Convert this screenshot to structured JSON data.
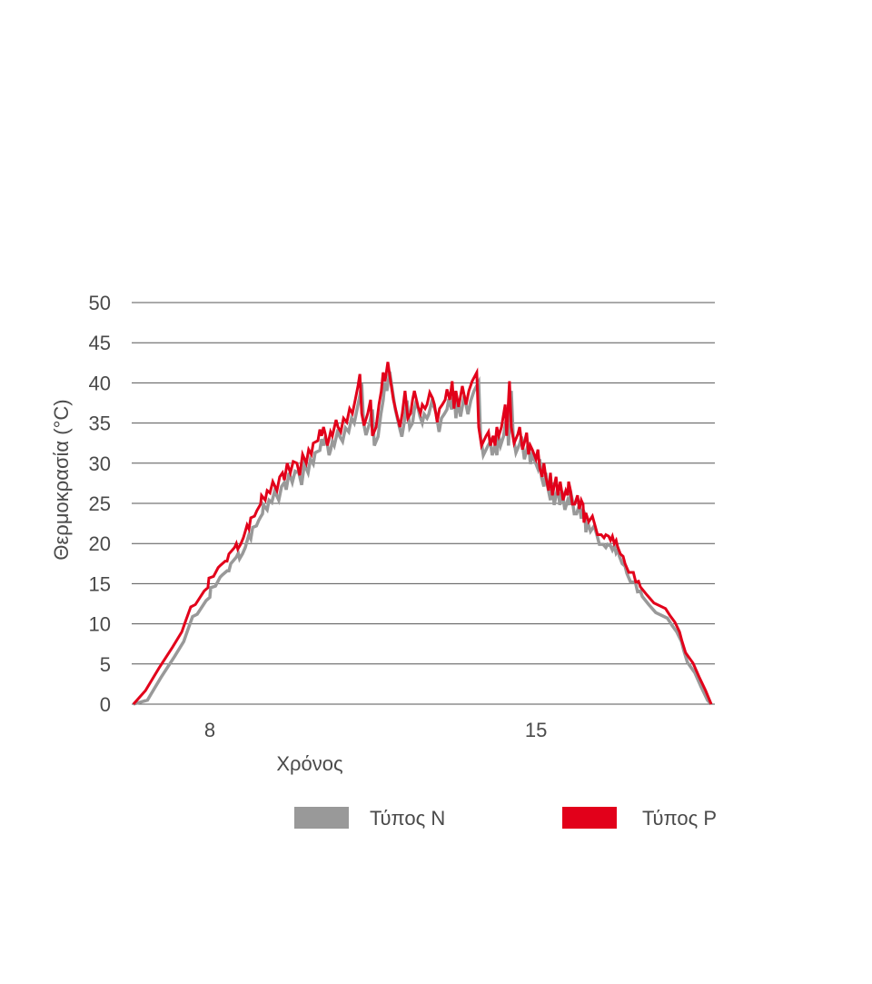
{
  "chart_data": {
    "type": "line",
    "title": "",
    "xlabel": "Χρόνος",
    "ylabel": "Θερμοκρασία (°C)",
    "xlim": [
      6.32,
      18.8
    ],
    "ylim": [
      0,
      50
    ],
    "x_ticks": [
      8,
      15
    ],
    "x_tick_labels": [
      "8",
      "15"
    ],
    "y_ticks": [
      0,
      5,
      10,
      15,
      20,
      25,
      30,
      35,
      40,
      45,
      50
    ],
    "y_tick_labels": [
      "0",
      "5",
      "10",
      "15",
      "20",
      "25",
      "30",
      "35",
      "40",
      "45",
      "50"
    ],
    "grid": "horizontal",
    "legend_position": "bottom",
    "series": [
      {
        "name": "Τύπος N",
        "color": "#999999",
        "derived_from": "Τύπος P",
        "y_offset": -1.2,
        "x_offset": 0.04
      },
      {
        "name": "Τύπος P",
        "color": "#e2001a",
        "x": [
          6.36,
          6.62,
          6.91,
          7.2,
          7.4,
          7.49,
          7.59,
          7.69,
          7.88,
          7.96,
          7.98,
          8.08,
          8.18,
          8.23,
          8.33,
          8.37,
          8.41,
          8.53,
          8.57,
          8.6,
          8.66,
          8.72,
          8.76,
          8.8,
          8.84,
          8.88,
          8.96,
          9.01,
          9.05,
          9.09,
          9.11,
          9.19,
          9.23,
          9.29,
          9.35,
          9.4,
          9.44,
          9.5,
          9.56,
          9.6,
          9.66,
          9.73,
          9.79,
          9.87,
          9.93,
          9.99,
          10.07,
          10.12,
          10.18,
          10.22,
          10.32,
          10.36,
          10.4,
          10.44,
          10.48,
          10.52,
          10.55,
          10.59,
          10.63,
          10.71,
          10.75,
          10.81,
          10.87,
          10.94,
          11.0,
          11.06,
          11.12,
          11.18,
          11.22,
          11.26,
          11.31,
          11.39,
          11.45,
          11.49,
          11.57,
          11.63,
          11.68,
          11.72,
          11.76,
          11.82,
          11.88,
          11.94,
          12.02,
          12.08,
          12.13,
          12.19,
          12.25,
          12.31,
          12.35,
          12.39,
          12.47,
          12.52,
          12.56,
          12.62,
          12.66,
          12.72,
          12.78,
          12.82,
          12.88,
          12.93,
          12.99,
          13.05,
          13.09,
          13.15,
          13.2,
          13.24,
          13.28,
          13.34,
          13.42,
          13.5,
          13.56,
          13.63,
          13.73,
          13.77,
          13.83,
          13.93,
          13.98,
          14.02,
          14.08,
          14.12,
          14.16,
          14.2,
          14.26,
          14.34,
          14.37,
          14.43,
          14.47,
          14.53,
          14.61,
          14.65,
          14.71,
          14.76,
          14.8,
          14.84,
          14.88,
          14.92,
          15.0,
          15.04,
          15.08,
          15.13,
          15.17,
          15.21,
          15.27,
          15.31,
          15.35,
          15.43,
          15.47,
          15.52,
          15.58,
          15.64,
          15.68,
          15.7,
          15.74,
          15.78,
          15.83,
          15.89,
          15.93,
          15.97,
          16.01,
          16.03,
          16.07,
          16.13,
          16.21,
          16.26,
          16.32,
          16.4,
          16.46,
          16.5,
          16.56,
          16.6,
          16.64,
          16.68,
          16.72,
          16.75,
          16.81,
          16.87,
          16.91,
          16.99,
          17.09,
          17.14,
          17.2,
          17.24,
          17.38,
          17.53,
          17.78,
          17.88,
          17.98,
          18.08,
          18.13,
          18.21,
          18.37,
          18.5,
          18.64,
          18.76
        ],
        "values": [
          0,
          1.7,
          4.5,
          7.1,
          9.0,
          10.5,
          12.1,
          12.4,
          14.1,
          14.5,
          15.7,
          15.9,
          17.0,
          17.3,
          17.8,
          17.8,
          18.7,
          19.5,
          20.0,
          19.3,
          19.9,
          20.7,
          21.5,
          22.3,
          21.8,
          23.2,
          23.4,
          24.1,
          24.5,
          24.9,
          26.0,
          25.4,
          26.6,
          26.3,
          27.7,
          27.1,
          26.6,
          28.3,
          28.8,
          27.9,
          30.0,
          28.8,
          30.2,
          30.0,
          28.5,
          31.1,
          30.0,
          31.7,
          31.1,
          32.5,
          32.8,
          34.2,
          33.4,
          34.5,
          33.6,
          32.2,
          32.8,
          33.9,
          33.4,
          35.4,
          34.5,
          33.9,
          35.6,
          35.1,
          36.8,
          36.2,
          37.9,
          39.6,
          41.1,
          36.2,
          34.7,
          36.2,
          37.9,
          33.4,
          34.5,
          37.3,
          39.0,
          41.3,
          40.2,
          42.6,
          40.2,
          37.9,
          35.9,
          34.5,
          36.2,
          39.0,
          35.6,
          36.2,
          37.9,
          39.0,
          37.0,
          36.2,
          37.3,
          36.8,
          37.3,
          38.8,
          38.1,
          37.3,
          35.1,
          36.8,
          37.3,
          37.9,
          39.2,
          37.9,
          40.2,
          36.8,
          39.0,
          37.0,
          39.6,
          37.3,
          39.0,
          40.2,
          41.3,
          34.5,
          32.2,
          33.4,
          33.9,
          32.2,
          33.4,
          32.2,
          34.5,
          33.4,
          34.5,
          37.3,
          33.4,
          40.2,
          34.5,
          32.5,
          33.6,
          34.5,
          31.7,
          32.8,
          33.8,
          31.1,
          32.2,
          31.7,
          30.5,
          31.7,
          29.4,
          28.3,
          30.0,
          28.3,
          26.6,
          28.8,
          26.0,
          28.3,
          26.0,
          27.7,
          25.4,
          26.6,
          26.0,
          27.7,
          26.6,
          24.9,
          24.9,
          26.0,
          24.3,
          25.4,
          24.9,
          22.6,
          23.8,
          22.7,
          23.4,
          22.4,
          21.1,
          21.1,
          20.7,
          21.1,
          20.9,
          20.4,
          20.9,
          20.0,
          20.4,
          19.6,
          18.7,
          18.4,
          17.5,
          16.4,
          16.4,
          15.2,
          15.3,
          14.6,
          13.6,
          12.6,
          11.9,
          11.0,
          10.2,
          9.0,
          7.9,
          6.4,
          5.1,
          3.4,
          1.7,
          0
        ]
      }
    ]
  }
}
